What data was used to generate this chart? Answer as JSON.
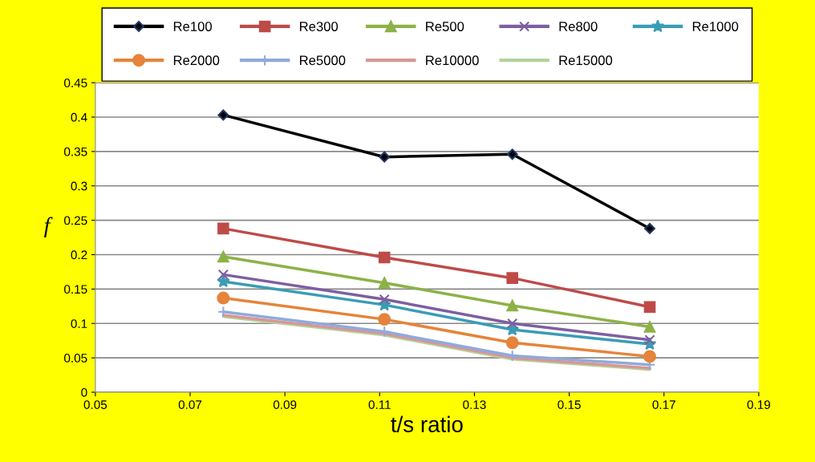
{
  "chart_data": {
    "type": "line",
    "xlabel": "t/s ratio",
    "ylabel": "f",
    "x": [
      0.077,
      0.111,
      0.138,
      0.167
    ],
    "xlim": [
      0.05,
      0.19
    ],
    "xticks": [
      0.05,
      0.07,
      0.09,
      0.11,
      0.13,
      0.15,
      0.17,
      0.19
    ],
    "ylim": [
      0,
      0.45
    ],
    "yticks": [
      0,
      0.05,
      0.1,
      0.15,
      0.2,
      0.25,
      0.3,
      0.35,
      0.4,
      0.45
    ],
    "grid": "y",
    "legend": "top",
    "series": [
      {
        "name": "Re100",
        "color": "#000000",
        "marker": "diamond",
        "values": [
          0.403,
          0.342,
          0.346,
          0.238
        ]
      },
      {
        "name": "Re300",
        "color": "#be4b48",
        "marker": "square",
        "values": [
          0.238,
          0.196,
          0.166,
          0.124
        ]
      },
      {
        "name": "Re500",
        "color": "#8cb247",
        "marker": "triangle",
        "values": [
          0.197,
          0.159,
          0.126,
          0.095
        ]
      },
      {
        "name": "Re800",
        "color": "#7d5fa0",
        "marker": "cross",
        "values": [
          0.171,
          0.135,
          0.1,
          0.076
        ]
      },
      {
        "name": "Re1000",
        "color": "#3b9cb5",
        "marker": "star",
        "values": [
          0.161,
          0.127,
          0.091,
          0.07
        ]
      },
      {
        "name": "Re2000",
        "color": "#e5843a",
        "marker": "circle",
        "values": [
          0.137,
          0.106,
          0.072,
          0.052
        ]
      },
      {
        "name": "Re5000",
        "color": "#8faadc",
        "marker": "plus",
        "values": [
          0.117,
          0.088,
          0.053,
          0.04
        ]
      },
      {
        "name": "Re10000",
        "color": "#d99694",
        "marker": "none",
        "values": [
          0.112,
          0.085,
          0.05,
          0.035
        ]
      },
      {
        "name": "Re15000",
        "color": "#b5d39a",
        "marker": "none",
        "values": [
          0.11,
          0.083,
          0.048,
          0.033
        ]
      }
    ]
  }
}
